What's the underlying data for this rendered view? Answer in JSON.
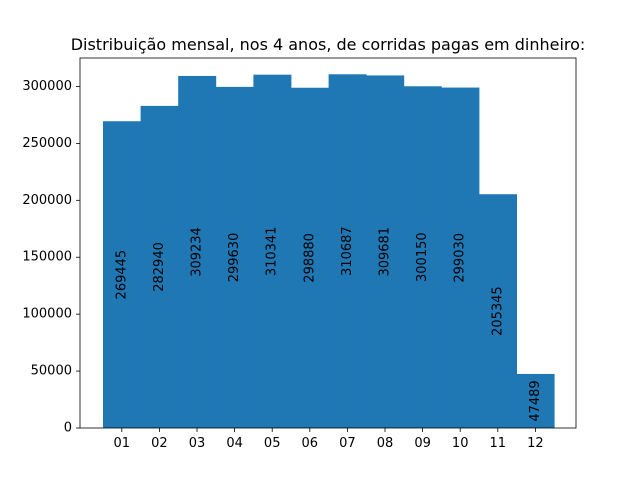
{
  "chart_data": {
    "type": "bar",
    "title": "Distribuição mensal, nos 4 anos, de corridas pagas em dinheiro:",
    "xlabel": "",
    "ylabel": "",
    "categories": [
      "01",
      "02",
      "03",
      "04",
      "05",
      "06",
      "07",
      "08",
      "09",
      "10",
      "11",
      "12"
    ],
    "values": [
      269445,
      282940,
      309234,
      299630,
      310341,
      298880,
      310687,
      309681,
      300150,
      299030,
      205345,
      47489
    ],
    "data_labels": [
      "269445",
      "282940",
      "309234",
      "299630",
      "310341",
      "298880",
      "310687",
      "309681",
      "300150",
      "299030",
      "205345",
      "47489"
    ],
    "ylim": [
      0,
      325000
    ],
    "y_ticks": [
      0,
      50000,
      100000,
      150000,
      200000,
      250000,
      300000
    ],
    "y_tick_labels": [
      "0",
      "50000",
      "100000",
      "150000",
      "200000",
      "250000",
      "300000"
    ],
    "grid": false,
    "bar_color": "#1f77b4"
  }
}
